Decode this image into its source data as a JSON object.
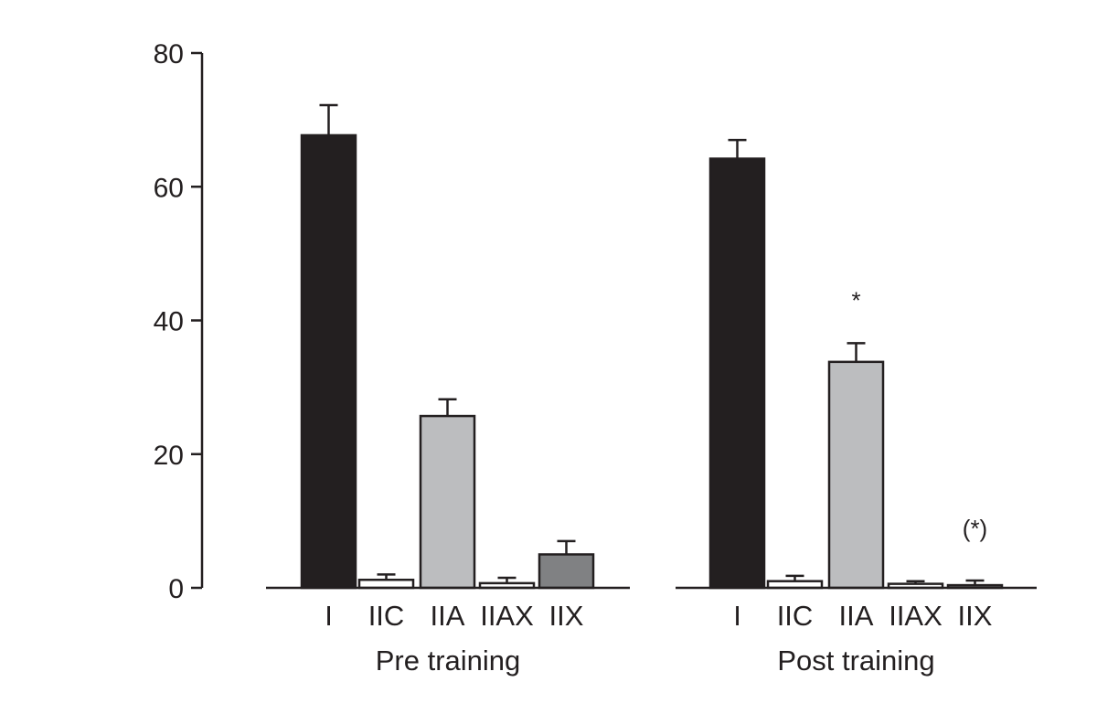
{
  "chart_data": {
    "type": "bar",
    "title": "",
    "ylabel": "",
    "xlabel": "",
    "ylim": [
      0,
      80
    ],
    "yticks": [
      0,
      20,
      40,
      60,
      80
    ],
    "grid": false,
    "categories": [
      "I",
      "IIC",
      "IIA",
      "IIAX",
      "IIX"
    ],
    "groups": [
      {
        "label": "Pre training",
        "values": [
          67.7,
          1.2,
          25.7,
          0.7,
          5.0
        ],
        "errors": [
          4.5,
          0.8,
          2.5,
          0.8,
          2.0
        ],
        "annotations": []
      },
      {
        "label": "Post training",
        "values": [
          64.2,
          1.0,
          33.8,
          0.6,
          0.4
        ],
        "errors": [
          2.8,
          0.8,
          2.8,
          0.4,
          0.7
        ],
        "annotations": [
          {
            "category": "IIA",
            "text": "*"
          },
          {
            "category": "IIX",
            "text": "(*)"
          }
        ]
      }
    ],
    "colors": [
      "#231f20",
      "#ffffff",
      "#bcbdbf",
      "#ffffff",
      "#808183"
    ]
  }
}
